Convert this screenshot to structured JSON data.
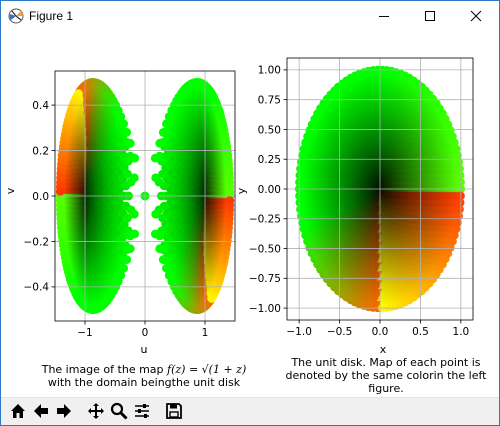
{
  "window": {
    "title": "Figure 1"
  },
  "left_caption": {
    "line1_prefix": "The image of the map ",
    "line1_math": "f(z) = √(1 + z)",
    "line2": "with the domain beingthe unit disk"
  },
  "right_caption": {
    "line1": "The unit disk. Map of each point is",
    "line2": "denoted by the same colorin the left",
    "line3": "figure."
  },
  "toolbar": {
    "icons": [
      "home-icon",
      "back-arrow-icon",
      "forward-arrow-icon",
      "pan-icon",
      "zoom-icon",
      "subplots-icon",
      "save-icon"
    ]
  },
  "chart_data": [
    {
      "type": "scatter",
      "title": "",
      "xlabel": "u",
      "ylabel": "v",
      "xlim": [
        -1.5,
        1.5
      ],
      "ylim": [
        -0.55,
        0.55
      ],
      "xticks": [
        "−1",
        "0",
        "1"
      ],
      "xtick_values": [
        -1,
        0,
        1
      ],
      "yticks": [
        "0.4",
        "0.2",
        "0.0",
        "−0.2",
        "−0.4"
      ],
      "ytick_values": [
        0.4,
        0.2,
        0.0,
        -0.2,
        -0.4
      ],
      "grid": true,
      "description_series": "image of unit disk under f(z)=sqrt(1+z), both branches",
      "colors": {
        "center": "#000000",
        "green": "#00ff00",
        "red": "#ff3000",
        "yellow": "#ffff00"
      }
    },
    {
      "type": "scatter",
      "title": "",
      "xlabel": "x",
      "ylabel": "y",
      "xlim": [
        -1.15,
        1.15
      ],
      "ylim": [
        -1.1,
        1.1
      ],
      "xticks": [
        "−1.0",
        "−0.5",
        "0.0",
        "0.5",
        "1.0"
      ],
      "xtick_values": [
        -1.0,
        -0.5,
        0.0,
        0.5,
        1.0
      ],
      "yticks": [
        "1.00",
        "0.75",
        "0.50",
        "0.25",
        "0.00",
        "−0.25",
        "−0.50",
        "−0.75",
        "−1.00"
      ],
      "ytick_values": [
        1.0,
        0.75,
        0.5,
        0.25,
        0.0,
        -0.25,
        -0.5,
        -0.75,
        -1.0
      ],
      "grid": true,
      "colors": {
        "center": "#000000",
        "green": "#00ff00",
        "red": "#ff3000",
        "yellow": "#ffff00"
      }
    }
  ]
}
